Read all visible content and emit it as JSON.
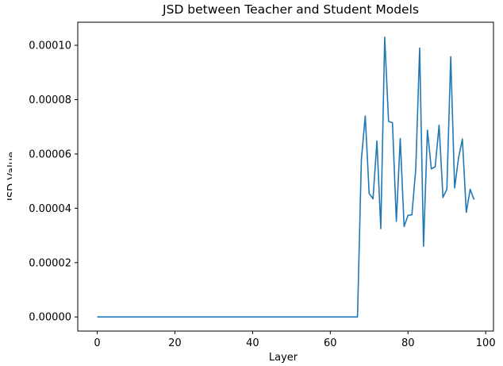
{
  "chart_data": {
    "type": "line",
    "title": "JSD between Teacher and Student Models",
    "xlabel": "Layer",
    "ylabel": "JSD Value",
    "xlim": [
      -5,
      102
    ],
    "ylim": [
      -5.2e-06,
      0.0001085
    ],
    "x_ticks": [
      0,
      20,
      40,
      60,
      80,
      100
    ],
    "x_tick_labels": [
      "0",
      "20",
      "40",
      "60",
      "80",
      "100"
    ],
    "y_ticks": [
      0,
      2e-05,
      4e-05,
      6e-05,
      8e-05,
      0.0001
    ],
    "y_tick_labels": [
      "0.00000",
      "0.00002",
      "0.00004",
      "0.00006",
      "0.00008",
      "0.00010"
    ],
    "grid": false,
    "line_color": "#1f77b4",
    "series": [
      {
        "x": [
          0,
          67,
          68,
          69,
          70,
          71,
          72,
          73,
          74,
          75,
          76,
          77,
          78,
          79,
          80,
          81,
          82,
          83,
          84,
          85,
          86,
          87,
          88,
          89,
          90,
          91,
          92,
          93,
          94,
          95,
          96,
          97
        ],
        "values": [
          0,
          0,
          5.8e-05,
          7.4e-05,
          4.55e-05,
          4.35e-05,
          6.48e-05,
          3.25e-05,
          0.000103,
          7.2e-05,
          7.15e-05,
          3.52e-05,
          6.57e-05,
          3.33e-05,
          3.74e-05,
          3.76e-05,
          5.45e-05,
          9.9e-05,
          2.6e-05,
          6.88e-05,
          5.45e-05,
          5.53e-05,
          7.06e-05,
          4.4e-05,
          4.7e-05,
          9.58e-05,
          4.75e-05,
          5.85e-05,
          6.55e-05,
          3.85e-05,
          4.7e-05,
          4.32e-05
        ]
      }
    ]
  }
}
